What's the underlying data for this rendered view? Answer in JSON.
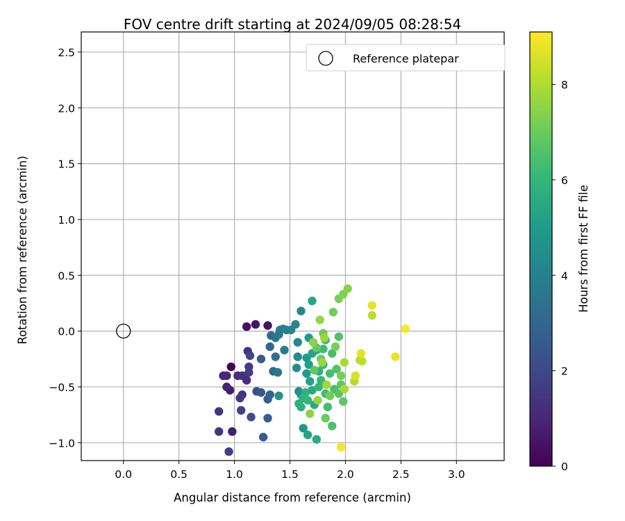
{
  "chart_data": {
    "type": "scatter",
    "title": "FOV centre drift starting at 2024/09/05 08:28:54",
    "xlabel": "Angular distance from reference (arcmin)",
    "ylabel": "Rotation from reference (arcmin)",
    "xlim": [
      -0.38,
      3.43
    ],
    "ylim": [
      -1.16,
      2.68
    ],
    "xticks": [
      "0.0",
      "0.5",
      "1.0",
      "1.5",
      "2.0",
      "2.5",
      "3.0"
    ],
    "yticks": [
      "−1.0",
      "−0.5",
      "0.0",
      "0.5",
      "1.0",
      "1.5",
      "2.0",
      "2.5"
    ],
    "grid": true,
    "legend": {
      "position": "top-right",
      "label": "Reference platepar"
    },
    "reference_point": {
      "x": 0.0,
      "y": 0.0
    },
    "colorbar": {
      "label": "Hours from first FF file",
      "colormap": "viridis",
      "min": 0,
      "max": 9.1,
      "ticks": [
        "0",
        "2",
        "4",
        "6",
        "8"
      ]
    },
    "points": [
      {
        "x": 0.97,
        "y": -0.32,
        "h": 0.1
      },
      {
        "x": 1.11,
        "y": 0.04,
        "h": 0.4
      },
      {
        "x": 1.19,
        "y": 0.06,
        "h": 0.5
      },
      {
        "x": 1.3,
        "y": 0.05,
        "h": 0.5
      },
      {
        "x": 0.96,
        "y": -0.53,
        "h": 0.7
      },
      {
        "x": 0.93,
        "y": -0.5,
        "h": 0.9
      },
      {
        "x": 0.98,
        "y": -0.9,
        "h": 0.7
      },
      {
        "x": 0.9,
        "y": -0.4,
        "h": 0.9
      },
      {
        "x": 0.93,
        "y": -0.4,
        "h": 1.0
      },
      {
        "x": 1.03,
        "y": -0.4,
        "h": 1.2
      },
      {
        "x": 1.07,
        "y": -0.4,
        "h": 1.3
      },
      {
        "x": 1.11,
        "y": -0.44,
        "h": 1.2
      },
      {
        "x": 1.07,
        "y": -0.57,
        "h": 1.3
      },
      {
        "x": 1.05,
        "y": -0.6,
        "h": 1.5
      },
      {
        "x": 0.86,
        "y": -0.72,
        "h": 1.4
      },
      {
        "x": 0.86,
        "y": -0.9,
        "h": 1.5
      },
      {
        "x": 0.95,
        "y": -1.08,
        "h": 1.7
      },
      {
        "x": 1.12,
        "y": -0.18,
        "h": 1.4
      },
      {
        "x": 1.13,
        "y": -0.32,
        "h": 1.6
      },
      {
        "x": 1.13,
        "y": -0.37,
        "h": 1.7
      },
      {
        "x": 1.06,
        "y": -0.71,
        "h": 1.8
      },
      {
        "x": 1.14,
        "y": -0.22,
        "h": 1.9
      },
      {
        "x": 1.15,
        "y": -0.77,
        "h": 2.2
      },
      {
        "x": 1.2,
        "y": -0.54,
        "h": 2.2
      },
      {
        "x": 1.24,
        "y": -0.55,
        "h": 2.5
      },
      {
        "x": 1.24,
        "y": -0.25,
        "h": 2.6
      },
      {
        "x": 1.26,
        "y": -0.95,
        "h": 2.6
      },
      {
        "x": 1.3,
        "y": -0.61,
        "h": 2.7
      },
      {
        "x": 1.3,
        "y": -0.78,
        "h": 2.8
      },
      {
        "x": 1.32,
        "y": -0.57,
        "h": 2.9
      },
      {
        "x": 1.32,
        "y": -0.14,
        "h": 3.0
      },
      {
        "x": 1.33,
        "y": -0.04,
        "h": 3.1
      },
      {
        "x": 1.35,
        "y": -0.36,
        "h": 3.2
      },
      {
        "x": 1.37,
        "y": -0.23,
        "h": 3.3
      },
      {
        "x": 1.37,
        "y": -0.06,
        "h": 3.5
      },
      {
        "x": 1.39,
        "y": -0.37,
        "h": 3.6
      },
      {
        "x": 1.4,
        "y": -0.03,
        "h": 3.7
      },
      {
        "x": 1.41,
        "y": 0.01,
        "h": 3.8
      },
      {
        "x": 1.44,
        "y": 0.02,
        "h": 3.9
      },
      {
        "x": 1.45,
        "y": -0.17,
        "h": 3.9
      },
      {
        "x": 1.47,
        "y": 0.01,
        "h": 4.0
      },
      {
        "x": 1.51,
        "y": 0.01,
        "h": 4.1
      },
      {
        "x": 1.55,
        "y": 0.06,
        "h": 4.2
      },
      {
        "x": 1.6,
        "y": 0.18,
        "h": 4.3
      },
      {
        "x": 1.57,
        "y": -0.1,
        "h": 4.3
      },
      {
        "x": 1.57,
        "y": -0.23,
        "h": 4.4
      },
      {
        "x": 1.56,
        "y": -0.33,
        "h": 4.5
      },
      {
        "x": 1.4,
        "y": -0.58,
        "h": 4.6
      },
      {
        "x": 1.58,
        "y": -0.54,
        "h": 4.6
      },
      {
        "x": 1.6,
        "y": -0.57,
        "h": 4.7
      },
      {
        "x": 1.62,
        "y": -0.87,
        "h": 4.8
      },
      {
        "x": 1.65,
        "y": -0.24,
        "h": 4.9
      },
      {
        "x": 1.65,
        "y": -0.38,
        "h": 5.0
      },
      {
        "x": 1.67,
        "y": -0.06,
        "h": 5.0
      },
      {
        "x": 1.67,
        "y": -0.3,
        "h": 5.1
      },
      {
        "x": 1.68,
        "y": -0.45,
        "h": 5.2
      },
      {
        "x": 1.66,
        "y": -0.93,
        "h": 5.3
      },
      {
        "x": 1.7,
        "y": 0.27,
        "h": 5.4
      },
      {
        "x": 1.7,
        "y": -0.2,
        "h": 5.4
      },
      {
        "x": 1.7,
        "y": -0.53,
        "h": 5.5
      },
      {
        "x": 1.72,
        "y": -0.66,
        "h": 5.5
      },
      {
        "x": 1.74,
        "y": -0.97,
        "h": 5.6
      },
      {
        "x": 1.74,
        "y": -0.17,
        "h": 5.6
      },
      {
        "x": 1.76,
        "y": -0.36,
        "h": 5.7
      },
      {
        "x": 1.58,
        "y": -0.65,
        "h": 5.8
      },
      {
        "x": 1.6,
        "y": -0.68,
        "h": 5.8
      },
      {
        "x": 1.62,
        "y": -0.6,
        "h": 5.9
      },
      {
        "x": 1.64,
        "y": -0.55,
        "h": 5.9
      },
      {
        "x": 1.66,
        "y": -0.62,
        "h": 6.0
      },
      {
        "x": 1.76,
        "y": -0.5,
        "h": 6.0
      },
      {
        "x": 1.78,
        "y": -0.44,
        "h": 6.1
      },
      {
        "x": 1.8,
        "y": -0.3,
        "h": 6.1
      },
      {
        "x": 1.8,
        "y": -0.16,
        "h": 6.2
      },
      {
        "x": 1.82,
        "y": -0.08,
        "h": 6.2
      },
      {
        "x": 1.82,
        "y": -0.56,
        "h": 6.3
      },
      {
        "x": 1.84,
        "y": -0.68,
        "h": 6.3
      },
      {
        "x": 1.86,
        "y": -0.38,
        "h": 6.4
      },
      {
        "x": 1.88,
        "y": -0.2,
        "h": 6.4
      },
      {
        "x": 1.88,
        "y": -0.85,
        "h": 6.5
      },
      {
        "x": 1.9,
        "y": -0.52,
        "h": 6.5
      },
      {
        "x": 1.92,
        "y": -0.34,
        "h": 6.6
      },
      {
        "x": 1.94,
        "y": -0.05,
        "h": 6.6
      },
      {
        "x": 1.94,
        "y": -0.56,
        "h": 6.7
      },
      {
        "x": 1.96,
        "y": -0.48,
        "h": 6.8
      },
      {
        "x": 1.98,
        "y": -0.63,
        "h": 6.8
      },
      {
        "x": 1.72,
        "y": -0.35,
        "h": 6.9
      },
      {
        "x": 1.74,
        "y": -0.15,
        "h": 6.9
      },
      {
        "x": 1.78,
        "y": -0.25,
        "h": 7.0
      },
      {
        "x": 1.8,
        "y": -0.02,
        "h": 7.0
      },
      {
        "x": 1.82,
        "y": -0.78,
        "h": 7.0
      },
      {
        "x": 1.86,
        "y": -0.58,
        "h": 7.1
      },
      {
        "x": 1.89,
        "y": 0.17,
        "h": 7.1
      },
      {
        "x": 1.91,
        "y": -0.14,
        "h": 7.2
      },
      {
        "x": 1.94,
        "y": 0.29,
        "h": 7.2
      },
      {
        "x": 1.96,
        "y": -0.4,
        "h": 7.2
      },
      {
        "x": 1.98,
        "y": 0.33,
        "h": 7.3
      },
      {
        "x": 2.02,
        "y": 0.38,
        "h": 7.4
      },
      {
        "x": 1.68,
        "y": -0.74,
        "h": 7.5
      },
      {
        "x": 1.71,
        "y": -0.1,
        "h": 7.5
      },
      {
        "x": 1.75,
        "y": -0.62,
        "h": 7.6
      },
      {
        "x": 1.77,
        "y": 0.1,
        "h": 7.6
      },
      {
        "x": 1.79,
        "y": -0.28,
        "h": 7.7
      },
      {
        "x": 1.81,
        "y": -0.06,
        "h": 7.7
      },
      {
        "x": 1.83,
        "y": -0.48,
        "h": 7.8
      },
      {
        "x": 1.99,
        "y": -0.28,
        "h": 7.9
      },
      {
        "x": 1.99,
        "y": -0.52,
        "h": 7.9
      },
      {
        "x": 2.08,
        "y": -0.45,
        "h": 8.0
      },
      {
        "x": 2.13,
        "y": -0.26,
        "h": 8.1
      },
      {
        "x": 2.15,
        "y": -0.27,
        "h": 8.2
      },
      {
        "x": 2.24,
        "y": 0.14,
        "h": 8.2
      },
      {
        "x": 2.09,
        "y": -0.4,
        "h": 8.6
      },
      {
        "x": 2.14,
        "y": -0.2,
        "h": 8.7
      },
      {
        "x": 2.24,
        "y": 0.23,
        "h": 8.8
      },
      {
        "x": 2.45,
        "y": -0.23,
        "h": 8.8
      },
      {
        "x": 2.54,
        "y": 0.02,
        "h": 9.0
      },
      {
        "x": 1.96,
        "y": -1.04,
        "h": 9.0
      }
    ]
  }
}
